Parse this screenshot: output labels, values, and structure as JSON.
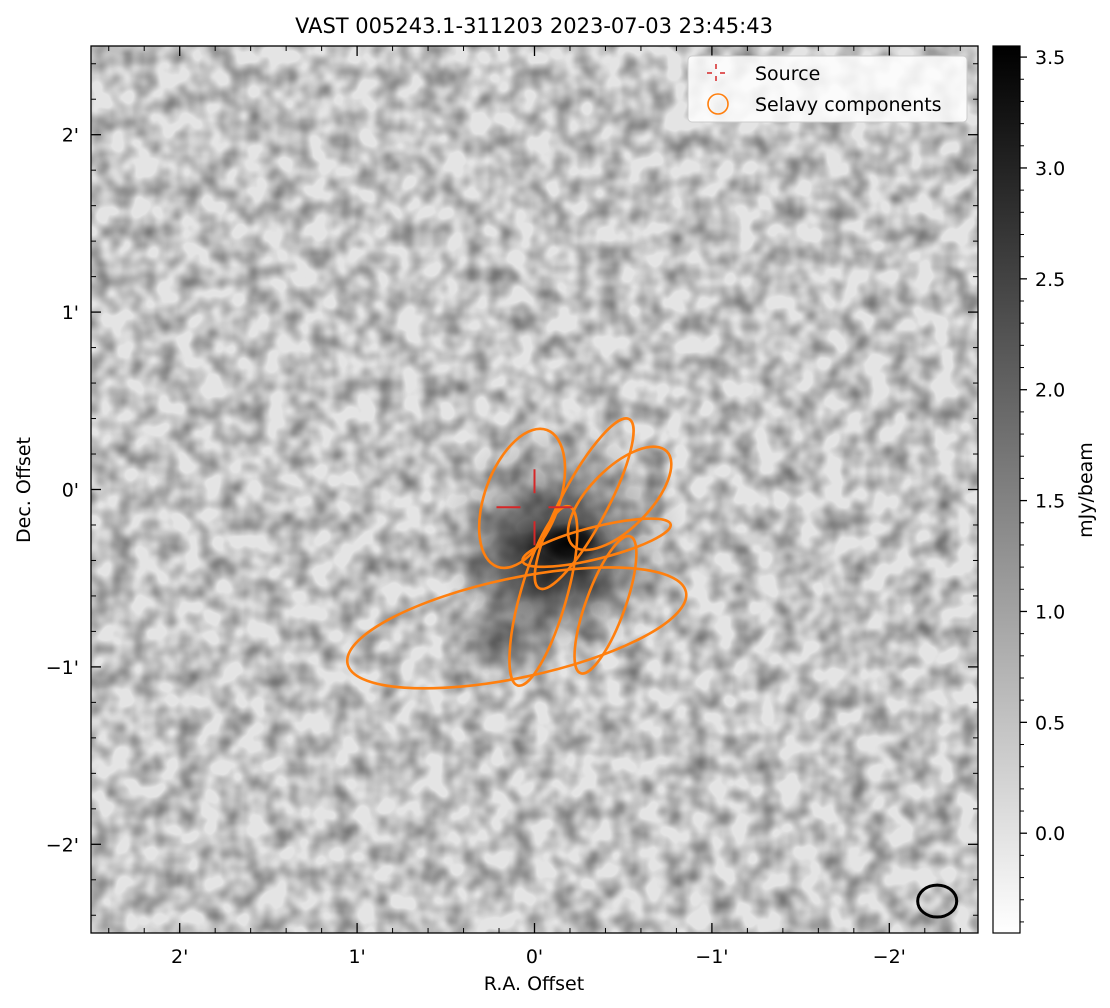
{
  "chart_data": {
    "type": "image",
    "title": "VAST 005243.1-311203 2023-07-03 23:45:43",
    "xlabel": "R.A. Offset",
    "ylabel": "Dec. Offset",
    "x_axis": {
      "unit": "arcmin",
      "range": [
        2.5,
        -2.5
      ],
      "ticks": [
        {
          "value": 2,
          "label": "2'"
        },
        {
          "value": 1,
          "label": "1'"
        },
        {
          "value": 0,
          "label": "0'"
        },
        {
          "value": -1,
          "label": "−1'"
        },
        {
          "value": -2,
          "label": "−2'"
        }
      ]
    },
    "y_axis": {
      "unit": "arcmin",
      "range": [
        -2.5,
        2.5
      ],
      "ticks": [
        {
          "value": 2,
          "label": "2'"
        },
        {
          "value": 1,
          "label": "1'"
        },
        {
          "value": 0,
          "label": "0'"
        },
        {
          "value": -1,
          "label": "−1'"
        },
        {
          "value": -2,
          "label": "−2'"
        }
      ]
    },
    "colorbar": {
      "label": "mJy/beam",
      "range": [
        -0.45,
        3.55
      ],
      "colormap": "gray_r",
      "ticks": [
        {
          "value": 3.5,
          "label": "3.5"
        },
        {
          "value": 3.0,
          "label": "3.0"
        },
        {
          "value": 2.5,
          "label": "2.5"
        },
        {
          "value": 2.0,
          "label": "2.0"
        },
        {
          "value": 1.5,
          "label": "1.5"
        },
        {
          "value": 1.0,
          "label": "1.0"
        },
        {
          "value": 0.5,
          "label": "0.5"
        },
        {
          "value": 0.0,
          "label": "0.0"
        }
      ]
    },
    "legend": {
      "placement": "top-right",
      "entries": [
        {
          "label": "Source",
          "marker": "red-dashed-crosshair",
          "color": "#d62728"
        },
        {
          "label": "Selavy components",
          "marker": "orange-circle",
          "color": "#ff7f0e"
        }
      ]
    },
    "source": {
      "ra": 0.0,
      "dec": -0.1,
      "color": "#d62728"
    },
    "emission_peak": {
      "ra": -0.2,
      "dec": -0.3,
      "peak": 3.55
    },
    "selavy_components": [
      {
        "ra": -0.28,
        "dec": -0.08,
        "major": 1.08,
        "minor": 0.26,
        "pa_deg": 28,
        "color": "#ff7f0e"
      },
      {
        "ra": 0.07,
        "dec": -0.05,
        "major": 0.82,
        "minor": 0.42,
        "pa_deg": 20,
        "color": "#ff7f0e"
      },
      {
        "ra": -0.48,
        "dec": -0.05,
        "major": 0.75,
        "minor": 0.34,
        "pa_deg": 45,
        "color": "#ff7f0e"
      },
      {
        "ra": -0.35,
        "dec": -0.3,
        "major": 0.86,
        "minor": 0.18,
        "pa_deg": 76,
        "color": "#ff7f0e"
      },
      {
        "ra": -0.05,
        "dec": -0.6,
        "major": 1.05,
        "minor": 0.26,
        "pa_deg": 16,
        "color": "#ff7f0e"
      },
      {
        "ra": -0.4,
        "dec": -0.65,
        "major": 0.82,
        "minor": 0.22,
        "pa_deg": 20,
        "color": "#ff7f0e"
      },
      {
        "ra": 0.1,
        "dec": -0.78,
        "major": 1.95,
        "minor": 0.56,
        "pa_deg": 78,
        "color": "#ff7f0e"
      }
    ],
    "beam": {
      "ra": -2.27,
      "dec": -2.32,
      "major": 0.22,
      "minor": 0.18,
      "pa_deg": 90,
      "color": "#000000"
    }
  }
}
